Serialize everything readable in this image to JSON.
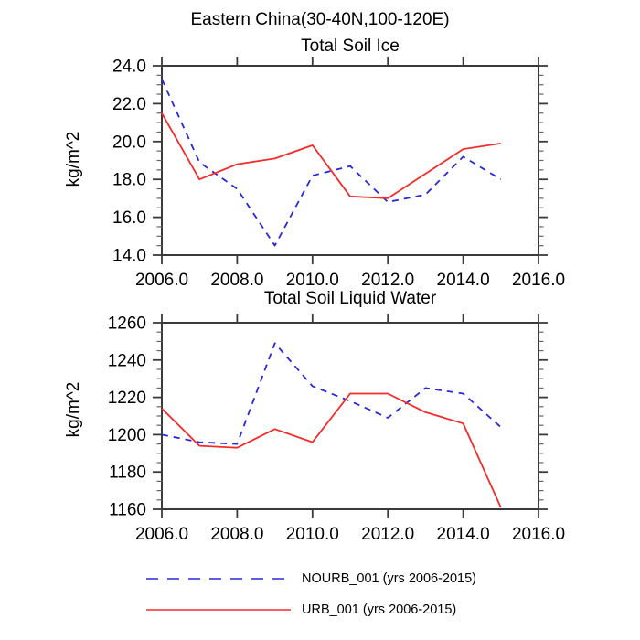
{
  "page_title": "Eastern China(30-40N,100-120E)",
  "colors": {
    "nourb_blue": "#2828dc",
    "urb_red": "#f42b2b",
    "axis": "#3a3a3a",
    "minor_tick": "#666666",
    "text": "#000000",
    "background": "#ffffff"
  },
  "legend": {
    "items": [
      {
        "label": "NOURB_001 (yrs 2006-2015)",
        "color_key": "nourb_blue",
        "style": "dashed"
      },
      {
        "label": "URB_001 (yrs 2006-2015)",
        "color_key": "urb_red",
        "style": "solid"
      }
    ],
    "position": "bottom"
  },
  "chart_data": [
    {
      "type": "line",
      "title": "Total Soil Ice",
      "xlabel": "",
      "ylabel": "kg/m^2",
      "x": [
        2006,
        2007,
        2008,
        2009,
        2010,
        2011,
        2012,
        2013,
        2014,
        2015
      ],
      "series": [
        {
          "name": "NOURB_001",
          "color_key": "nourb_blue",
          "dashed": true,
          "values": [
            23.3,
            18.9,
            17.5,
            14.5,
            18.2,
            18.7,
            16.8,
            17.2,
            19.2,
            18.0
          ]
        },
        {
          "name": "URB_001",
          "color_key": "urb_red",
          "dashed": false,
          "values": [
            21.5,
            18.0,
            18.8,
            19.1,
            19.8,
            17.1,
            17.0,
            18.3,
            19.6,
            19.9
          ]
        }
      ],
      "xlim": [
        2006,
        2016
      ],
      "ylim": [
        14.0,
        24.0
      ],
      "xtick_values": [
        2006,
        2008,
        2010,
        2012,
        2014,
        2016
      ],
      "xtick_labels": [
        "2006.0",
        "2008.0",
        "2010.0",
        "2012.0",
        "2014.0",
        "2016.0"
      ],
      "ytick_values": [
        14,
        16,
        18,
        20,
        22,
        24
      ],
      "ytick_labels": [
        "14.0",
        "16.0",
        "18.0",
        "20.0",
        "22.0",
        "24.0"
      ],
      "y_minor_step": 0.5,
      "grid": false
    },
    {
      "type": "line",
      "title": "Total Soil Liquid Water",
      "xlabel": "",
      "ylabel": "kg/m^2",
      "x": [
        2006,
        2007,
        2008,
        2009,
        2010,
        2011,
        2012,
        2013,
        2014,
        2015
      ],
      "series": [
        {
          "name": "NOURB_001",
          "color_key": "nourb_blue",
          "dashed": true,
          "values": [
            1200,
            1196,
            1195,
            1249,
            1226,
            1218,
            1209,
            1225,
            1222,
            1204
          ]
        },
        {
          "name": "URB_001",
          "color_key": "urb_red",
          "dashed": false,
          "values": [
            1214,
            1194,
            1193,
            1203,
            1196,
            1222,
            1222,
            1212,
            1206,
            1161
          ]
        }
      ],
      "xlim": [
        2006,
        2016
      ],
      "ylim": [
        1160,
        1260
      ],
      "xtick_values": [
        2006,
        2008,
        2010,
        2012,
        2014,
        2016
      ],
      "xtick_labels": [
        "2006.0",
        "2008.0",
        "2010.0",
        "2012.0",
        "2014.0",
        "2016.0"
      ],
      "ytick_values": [
        1160,
        1180,
        1200,
        1220,
        1240,
        1260
      ],
      "ytick_labels": [
        "1160",
        "1180",
        "1200",
        "1220",
        "1240",
        "1260"
      ],
      "y_minor_step": 5,
      "grid": false
    }
  ]
}
